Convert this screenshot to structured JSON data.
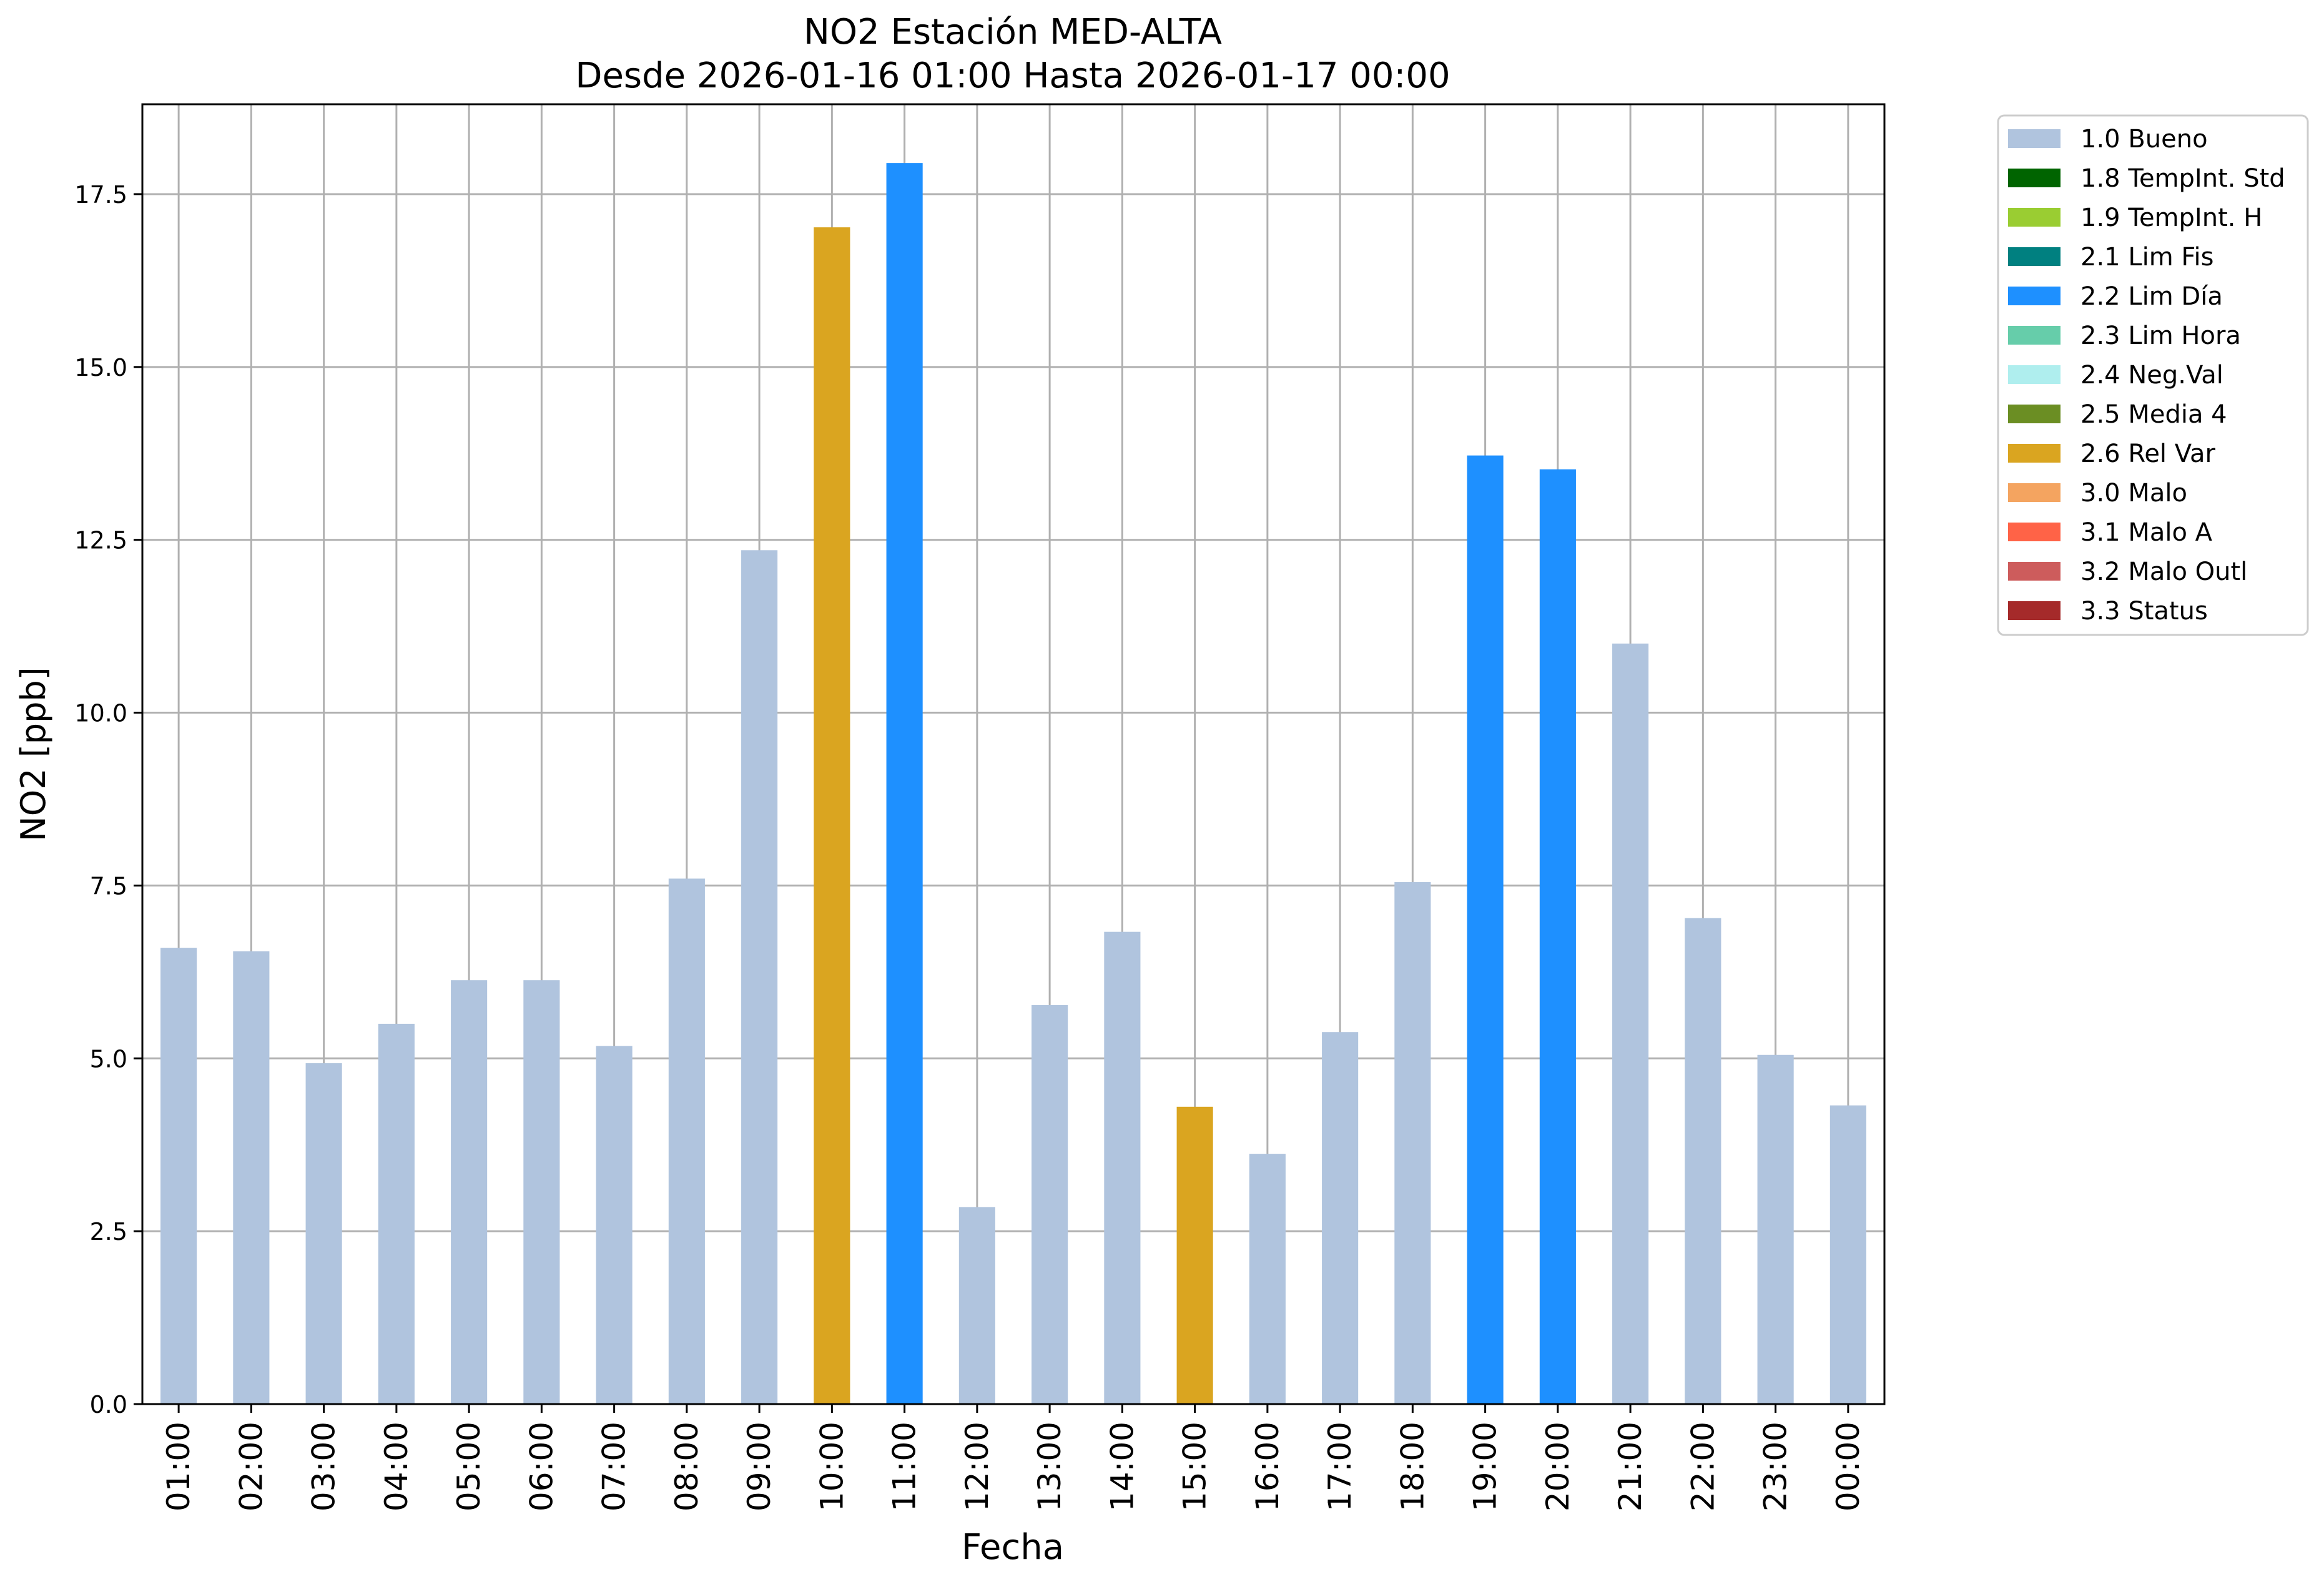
{
  "chart_data": {
    "type": "bar",
    "title": "NO2 Estación MED-ALTA",
    "subtitle": "Desde 2026-01-16 01:00 Hasta 2026-01-17 00:00",
    "xlabel": "Fecha",
    "ylabel": "NO2 [ppb]",
    "ylim": [
      0,
      18.8
    ],
    "yticks": [
      0.0,
      2.5,
      5.0,
      7.5,
      10.0,
      12.5,
      15.0,
      17.5
    ],
    "grid": true,
    "legend_placement": "outside-top-right",
    "categories": [
      "01:00",
      "02:00",
      "03:00",
      "04:00",
      "05:00",
      "06:00",
      "07:00",
      "08:00",
      "09:00",
      "10:00",
      "11:00",
      "12:00",
      "13:00",
      "14:00",
      "15:00",
      "16:00",
      "17:00",
      "18:00",
      "19:00",
      "20:00",
      "21:00",
      "22:00",
      "23:00",
      "00:00"
    ],
    "values": [
      6.6,
      6.55,
      4.93,
      5.5,
      6.13,
      6.13,
      5.18,
      7.6,
      12.35,
      17.02,
      17.95,
      2.85,
      5.77,
      6.83,
      4.3,
      3.62,
      5.38,
      7.55,
      13.72,
      13.52,
      11.0,
      7.03,
      5.05,
      4.32
    ],
    "flags": [
      "1.0 Bueno",
      "1.0 Bueno",
      "1.0 Bueno",
      "1.0 Bueno",
      "1.0 Bueno",
      "1.0 Bueno",
      "1.0 Bueno",
      "1.0 Bueno",
      "1.0 Bueno",
      "2.6 Rel Var",
      "2.2 Lim Día",
      "1.0 Bueno",
      "1.0 Bueno",
      "1.0 Bueno",
      "2.6 Rel Var",
      "1.0 Bueno",
      "1.0 Bueno",
      "1.0 Bueno",
      "2.2 Lim Día",
      "2.2 Lim Día",
      "1.0 Bueno",
      "1.0 Bueno",
      "1.0 Bueno",
      "1.0 Bueno"
    ],
    "legend": [
      {
        "label": "1.0 Bueno",
        "color": "#b0c4de"
      },
      {
        "label": "1.8 TempInt. Std",
        "color": "#006400"
      },
      {
        "label": "1.9 TempInt. H",
        "color": "#9acd32"
      },
      {
        "label": "2.1 Lim Fis",
        "color": "#008080"
      },
      {
        "label": "2.2 Lim Día",
        "color": "#1e90ff"
      },
      {
        "label": "2.3 Lim Hora",
        "color": "#66cdaa"
      },
      {
        "label": "2.4 Neg.Val",
        "color": "#afeeee"
      },
      {
        "label": "2.5 Media 4",
        "color": "#6b8e23"
      },
      {
        "label": "2.6 Rel Var",
        "color": "#daa520"
      },
      {
        "label": "3.0 Malo",
        "color": "#f4a460"
      },
      {
        "label": "3.1 Malo A",
        "color": "#ff6347"
      },
      {
        "label": "3.2 Malo Outl",
        "color": "#cd5c5c"
      },
      {
        "label": "3.3 Status",
        "color": "#a52a2a"
      }
    ]
  }
}
